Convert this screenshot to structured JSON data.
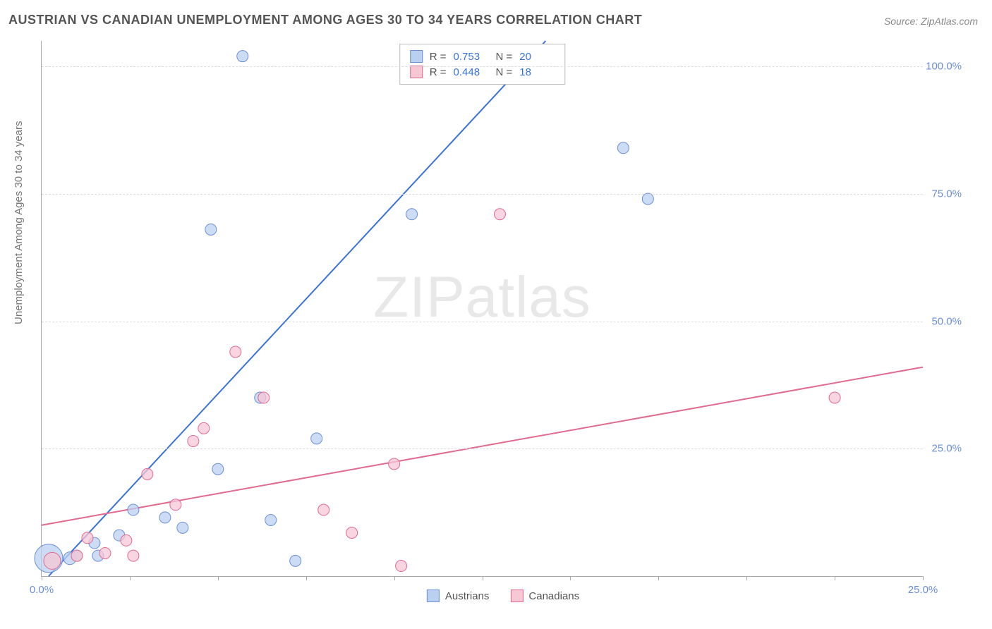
{
  "title": "AUSTRIAN VS CANADIAN UNEMPLOYMENT AMONG AGES 30 TO 34 YEARS CORRELATION CHART",
  "source": "Source: ZipAtlas.com",
  "ylabel": "Unemployment Among Ages 30 to 34 years",
  "watermark": {
    "bold": "ZIP",
    "thin": "atlas"
  },
  "chart": {
    "type": "scatter",
    "background_color": "#ffffff",
    "grid_color": "#dddddd",
    "axis_color": "#aaaaaa",
    "xlim": [
      0,
      25
    ],
    "ylim": [
      0,
      105
    ],
    "xticks": [
      0,
      2.5,
      5,
      7.5,
      10,
      12.5,
      15,
      17.5,
      20,
      22.5,
      25
    ],
    "xtick_labels": {
      "0": "0.0%",
      "25": "25.0%"
    },
    "yticks": [
      25,
      50,
      75,
      100
    ],
    "ytick_labels": {
      "25": "25.0%",
      "50": "50.0%",
      "75": "75.0%",
      "100": "100.0%"
    },
    "tick_font_color": "#6a8fd8",
    "tick_fontsize": 15,
    "title_fontsize": 18,
    "title_color": "#555555",
    "series": [
      {
        "name": "Austrians",
        "fill_color": "#b9d0f0",
        "stroke_color": "#6a8fd8",
        "line_color": "#3a73d8",
        "line_width": 2,
        "marker_radius": 8,
        "R": "0.753",
        "N": "20",
        "trend": {
          "x1": 0.2,
          "y1": 0,
          "x2": 14.3,
          "y2": 105
        },
        "points": [
          {
            "x": 0.2,
            "y": 3.5,
            "r": 20
          },
          {
            "x": 0.8,
            "y": 3.5,
            "r": 9
          },
          {
            "x": 1.0,
            "y": 4.0,
            "r": 8
          },
          {
            "x": 1.5,
            "y": 6.5,
            "r": 8
          },
          {
            "x": 1.6,
            "y": 4.0,
            "r": 8
          },
          {
            "x": 2.2,
            "y": 8.0,
            "r": 8
          },
          {
            "x": 2.6,
            "y": 13.0,
            "r": 8
          },
          {
            "x": 3.5,
            "y": 11.5,
            "r": 8
          },
          {
            "x": 4.0,
            "y": 9.5,
            "r": 8
          },
          {
            "x": 4.8,
            "y": 68.0,
            "r": 8
          },
          {
            "x": 5.0,
            "y": 21.0,
            "r": 8
          },
          {
            "x": 5.7,
            "y": 102.0,
            "r": 8
          },
          {
            "x": 6.2,
            "y": 35.0,
            "r": 8
          },
          {
            "x": 6.5,
            "y": 11.0,
            "r": 8
          },
          {
            "x": 7.2,
            "y": 3.0,
            "r": 8
          },
          {
            "x": 7.8,
            "y": 27.0,
            "r": 8
          },
          {
            "x": 10.5,
            "y": 71.0,
            "r": 8
          },
          {
            "x": 13.5,
            "y": 102.0,
            "r": 8
          },
          {
            "x": 16.5,
            "y": 84.0,
            "r": 8
          },
          {
            "x": 17.2,
            "y": 74.0,
            "r": 8
          }
        ]
      },
      {
        "name": "Canadians",
        "fill_color": "#f6c7d5",
        "stroke_color": "#e16a8f",
        "line_color": "#e16a8f",
        "line_width": 2,
        "marker_radius": 8,
        "R": "0.448",
        "N": "18",
        "trend": {
          "x1": 0,
          "y1": 10,
          "x2": 25,
          "y2": 41
        },
        "points": [
          {
            "x": 0.3,
            "y": 3.0,
            "r": 12
          },
          {
            "x": 1.0,
            "y": 4.0,
            "r": 8
          },
          {
            "x": 1.3,
            "y": 7.5,
            "r": 8
          },
          {
            "x": 1.8,
            "y": 4.5,
            "r": 8
          },
          {
            "x": 2.4,
            "y": 7.0,
            "r": 8
          },
          {
            "x": 2.6,
            "y": 4.0,
            "r": 8
          },
          {
            "x": 3.0,
            "y": 20.0,
            "r": 8
          },
          {
            "x": 3.8,
            "y": 14.0,
            "r": 8
          },
          {
            "x": 4.3,
            "y": 26.5,
            "r": 8
          },
          {
            "x": 4.6,
            "y": 29.0,
            "r": 8
          },
          {
            "x": 5.5,
            "y": 44.0,
            "r": 8
          },
          {
            "x": 6.3,
            "y": 35.0,
            "r": 8
          },
          {
            "x": 8.0,
            "y": 13.0,
            "r": 8
          },
          {
            "x": 8.8,
            "y": 8.5,
            "r": 8
          },
          {
            "x": 10.0,
            "y": 22.0,
            "r": 8
          },
          {
            "x": 10.2,
            "y": 2.0,
            "r": 8
          },
          {
            "x": 13.0,
            "y": 71.0,
            "r": 8
          },
          {
            "x": 22.5,
            "y": 35.0,
            "r": 8
          }
        ]
      }
    ]
  }
}
